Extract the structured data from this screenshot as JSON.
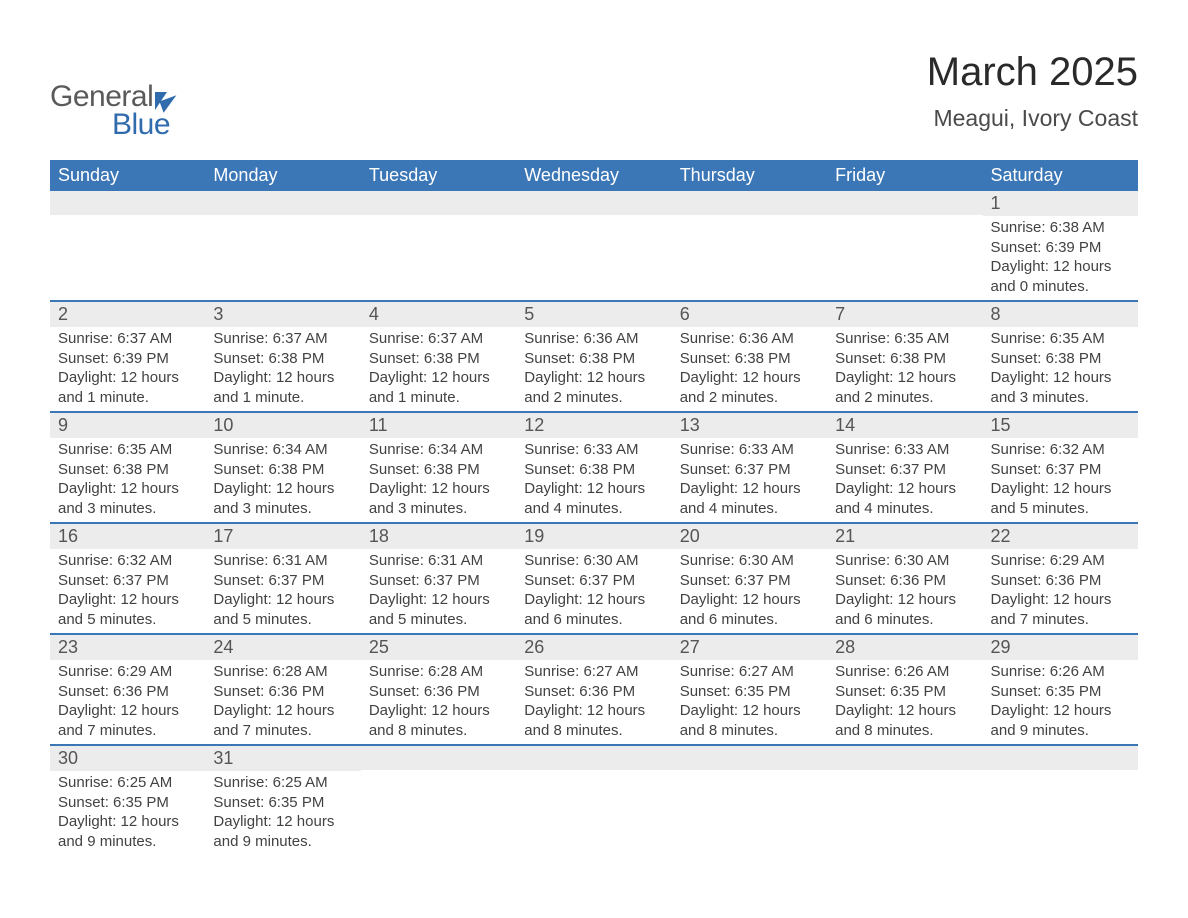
{
  "logo": {
    "text1": "General",
    "text2": "Blue",
    "accent_color": "#2f6bad",
    "gray": "#5a5a5a"
  },
  "header": {
    "title": "March 2025",
    "location": "Meagui, Ivory Coast"
  },
  "calendar": {
    "day_names": [
      "Sunday",
      "Monday",
      "Tuesday",
      "Wednesday",
      "Thursday",
      "Friday",
      "Saturday"
    ],
    "header_bg": "#3b76b6",
    "header_fg": "#ffffff",
    "row_sep_color": "#3b76b6",
    "daynum_bg": "#ececec",
    "text_color": "#424242",
    "weeks": [
      [
        {
          "n": "",
          "lines": []
        },
        {
          "n": "",
          "lines": []
        },
        {
          "n": "",
          "lines": []
        },
        {
          "n": "",
          "lines": []
        },
        {
          "n": "",
          "lines": []
        },
        {
          "n": "",
          "lines": []
        },
        {
          "n": "1",
          "lines": [
            "Sunrise: 6:38 AM",
            "Sunset: 6:39 PM",
            "Daylight: 12 hours and 0 minutes."
          ]
        }
      ],
      [
        {
          "n": "2",
          "lines": [
            "Sunrise: 6:37 AM",
            "Sunset: 6:39 PM",
            "Daylight: 12 hours and 1 minute."
          ]
        },
        {
          "n": "3",
          "lines": [
            "Sunrise: 6:37 AM",
            "Sunset: 6:38 PM",
            "Daylight: 12 hours and 1 minute."
          ]
        },
        {
          "n": "4",
          "lines": [
            "Sunrise: 6:37 AM",
            "Sunset: 6:38 PM",
            "Daylight: 12 hours and 1 minute."
          ]
        },
        {
          "n": "5",
          "lines": [
            "Sunrise: 6:36 AM",
            "Sunset: 6:38 PM",
            "Daylight: 12 hours and 2 minutes."
          ]
        },
        {
          "n": "6",
          "lines": [
            "Sunrise: 6:36 AM",
            "Sunset: 6:38 PM",
            "Daylight: 12 hours and 2 minutes."
          ]
        },
        {
          "n": "7",
          "lines": [
            "Sunrise: 6:35 AM",
            "Sunset: 6:38 PM",
            "Daylight: 12 hours and 2 minutes."
          ]
        },
        {
          "n": "8",
          "lines": [
            "Sunrise: 6:35 AM",
            "Sunset: 6:38 PM",
            "Daylight: 12 hours and 3 minutes."
          ]
        }
      ],
      [
        {
          "n": "9",
          "lines": [
            "Sunrise: 6:35 AM",
            "Sunset: 6:38 PM",
            "Daylight: 12 hours and 3 minutes."
          ]
        },
        {
          "n": "10",
          "lines": [
            "Sunrise: 6:34 AM",
            "Sunset: 6:38 PM",
            "Daylight: 12 hours and 3 minutes."
          ]
        },
        {
          "n": "11",
          "lines": [
            "Sunrise: 6:34 AM",
            "Sunset: 6:38 PM",
            "Daylight: 12 hours and 3 minutes."
          ]
        },
        {
          "n": "12",
          "lines": [
            "Sunrise: 6:33 AM",
            "Sunset: 6:38 PM",
            "Daylight: 12 hours and 4 minutes."
          ]
        },
        {
          "n": "13",
          "lines": [
            "Sunrise: 6:33 AM",
            "Sunset: 6:37 PM",
            "Daylight: 12 hours and 4 minutes."
          ]
        },
        {
          "n": "14",
          "lines": [
            "Sunrise: 6:33 AM",
            "Sunset: 6:37 PM",
            "Daylight: 12 hours and 4 minutes."
          ]
        },
        {
          "n": "15",
          "lines": [
            "Sunrise: 6:32 AM",
            "Sunset: 6:37 PM",
            "Daylight: 12 hours and 5 minutes."
          ]
        }
      ],
      [
        {
          "n": "16",
          "lines": [
            "Sunrise: 6:32 AM",
            "Sunset: 6:37 PM",
            "Daylight: 12 hours and 5 minutes."
          ]
        },
        {
          "n": "17",
          "lines": [
            "Sunrise: 6:31 AM",
            "Sunset: 6:37 PM",
            "Daylight: 12 hours and 5 minutes."
          ]
        },
        {
          "n": "18",
          "lines": [
            "Sunrise: 6:31 AM",
            "Sunset: 6:37 PM",
            "Daylight: 12 hours and 5 minutes."
          ]
        },
        {
          "n": "19",
          "lines": [
            "Sunrise: 6:30 AM",
            "Sunset: 6:37 PM",
            "Daylight: 12 hours and 6 minutes."
          ]
        },
        {
          "n": "20",
          "lines": [
            "Sunrise: 6:30 AM",
            "Sunset: 6:37 PM",
            "Daylight: 12 hours and 6 minutes."
          ]
        },
        {
          "n": "21",
          "lines": [
            "Sunrise: 6:30 AM",
            "Sunset: 6:36 PM",
            "Daylight: 12 hours and 6 minutes."
          ]
        },
        {
          "n": "22",
          "lines": [
            "Sunrise: 6:29 AM",
            "Sunset: 6:36 PM",
            "Daylight: 12 hours and 7 minutes."
          ]
        }
      ],
      [
        {
          "n": "23",
          "lines": [
            "Sunrise: 6:29 AM",
            "Sunset: 6:36 PM",
            "Daylight: 12 hours and 7 minutes."
          ]
        },
        {
          "n": "24",
          "lines": [
            "Sunrise: 6:28 AM",
            "Sunset: 6:36 PM",
            "Daylight: 12 hours and 7 minutes."
          ]
        },
        {
          "n": "25",
          "lines": [
            "Sunrise: 6:28 AM",
            "Sunset: 6:36 PM",
            "Daylight: 12 hours and 8 minutes."
          ]
        },
        {
          "n": "26",
          "lines": [
            "Sunrise: 6:27 AM",
            "Sunset: 6:36 PM",
            "Daylight: 12 hours and 8 minutes."
          ]
        },
        {
          "n": "27",
          "lines": [
            "Sunrise: 6:27 AM",
            "Sunset: 6:35 PM",
            "Daylight: 12 hours and 8 minutes."
          ]
        },
        {
          "n": "28",
          "lines": [
            "Sunrise: 6:26 AM",
            "Sunset: 6:35 PM",
            "Daylight: 12 hours and 8 minutes."
          ]
        },
        {
          "n": "29",
          "lines": [
            "Sunrise: 6:26 AM",
            "Sunset: 6:35 PM",
            "Daylight: 12 hours and 9 minutes."
          ]
        }
      ],
      [
        {
          "n": "30",
          "lines": [
            "Sunrise: 6:25 AM",
            "Sunset: 6:35 PM",
            "Daylight: 12 hours and 9 minutes."
          ]
        },
        {
          "n": "31",
          "lines": [
            "Sunrise: 6:25 AM",
            "Sunset: 6:35 PM",
            "Daylight: 12 hours and 9 minutes."
          ]
        },
        {
          "n": "",
          "lines": []
        },
        {
          "n": "",
          "lines": []
        },
        {
          "n": "",
          "lines": []
        },
        {
          "n": "",
          "lines": []
        },
        {
          "n": "",
          "lines": []
        }
      ]
    ]
  }
}
